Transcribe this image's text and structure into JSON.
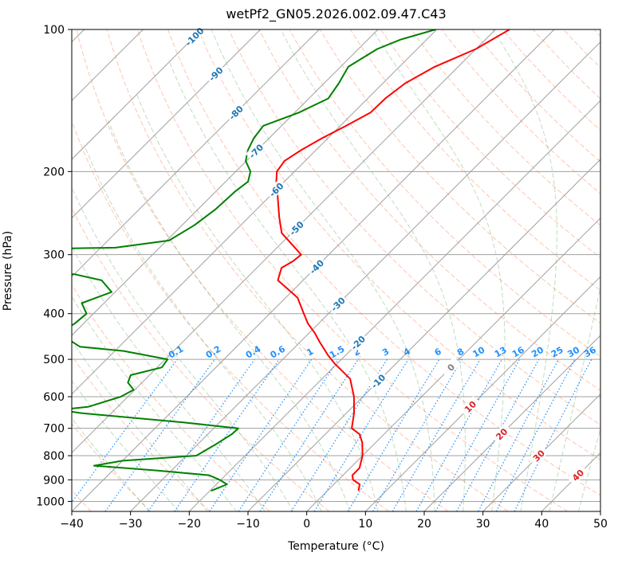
{
  "chart_data": {
    "type": "line",
    "title": "wetPf2_GN05.2026.002.09.47.C43",
    "xlabel": "Temperature (°C)",
    "ylabel": "Pressure (hPa)",
    "xlim": [
      -40,
      50
    ],
    "ylim": [
      1050,
      100
    ],
    "y_scale": "log",
    "skew": true,
    "grid": true,
    "x_ticks": [
      -40,
      -30,
      -20,
      -10,
      0,
      10,
      20,
      30,
      40,
      50
    ],
    "y_ticks": [
      100,
      200,
      300,
      400,
      500,
      600,
      700,
      800,
      900,
      1000
    ],
    "series": [
      {
        "role": "temperature",
        "color": "#ff0000",
        "points": [
          [
            100,
            -47.6
          ],
          [
            110,
            -50.0
          ],
          [
            120,
            -54.0
          ],
          [
            130,
            -56.2
          ],
          [
            140,
            -57.0
          ],
          [
            150,
            -57.1
          ],
          [
            160,
            -59.0
          ],
          [
            170,
            -61.0
          ],
          [
            180,
            -62.5
          ],
          [
            190,
            -63.5
          ],
          [
            200,
            -63.0
          ],
          [
            210,
            -61.4
          ],
          [
            220,
            -59.6
          ],
          [
            250,
            -54.8
          ],
          [
            270,
            -51.7
          ],
          [
            300,
            -44.7
          ],
          [
            310,
            -45.0
          ],
          [
            320,
            -45.8
          ],
          [
            340,
            -44.3
          ],
          [
            370,
            -38.0
          ],
          [
            400,
            -34.2
          ],
          [
            420,
            -31.8
          ],
          [
            440,
            -29.0
          ],
          [
            460,
            -26.6
          ],
          [
            490,
            -23.0
          ],
          [
            510,
            -20.5
          ],
          [
            550,
            -15.2
          ],
          [
            600,
            -11.5
          ],
          [
            650,
            -8.7
          ],
          [
            700,
            -6.5
          ],
          [
            720,
            -4.2
          ],
          [
            750,
            -2.3
          ],
          [
            800,
            0.0
          ],
          [
            850,
            1.6
          ],
          [
            880,
            1.6
          ],
          [
            900,
            2.5
          ],
          [
            920,
            4.4
          ],
          [
            950,
            5.3
          ]
        ]
      },
      {
        "role": "dewpoint",
        "color": "#008000",
        "points": [
          [
            100,
            -60.2
          ],
          [
            105,
            -64.4
          ],
          [
            110,
            -66.8
          ],
          [
            120,
            -68.7
          ],
          [
            130,
            -67.5
          ],
          [
            140,
            -66.7
          ],
          [
            150,
            -69.3
          ],
          [
            160,
            -73.1
          ],
          [
            170,
            -72.6
          ],
          [
            180,
            -71.6
          ],
          [
            190,
            -70.1
          ],
          [
            200,
            -67.5
          ],
          [
            210,
            -66.2
          ],
          [
            220,
            -66.7
          ],
          [
            240,
            -67.0
          ],
          [
            260,
            -67.9
          ],
          [
            280,
            -69.6
          ],
          [
            290,
            -77.5
          ],
          [
            293,
            -99.6
          ],
          [
            300,
            -100.0
          ],
          [
            315,
            -98.4
          ],
          [
            325,
            -94.0
          ],
          [
            330,
            -80.0
          ],
          [
            340,
            -74.3
          ],
          [
            360,
            -70.6
          ],
          [
            380,
            -73.8
          ],
          [
            400,
            -71.2
          ],
          [
            420,
            -71.5
          ],
          [
            440,
            -72.6
          ],
          [
            470,
            -66.7
          ],
          [
            480,
            -58.5
          ],
          [
            500,
            -49.6
          ],
          [
            520,
            -49.2
          ],
          [
            540,
            -53.2
          ],
          [
            560,
            -52.4
          ],
          [
            580,
            -50.2
          ],
          [
            600,
            -51.2
          ],
          [
            630,
            -55.0
          ],
          [
            640,
            -59.4
          ],
          [
            650,
            -55.1
          ],
          [
            680,
            -36.2
          ],
          [
            700,
            -25.8
          ],
          [
            720,
            -25.9
          ],
          [
            760,
            -27.0
          ],
          [
            800,
            -28.3
          ],
          [
            820,
            -40.0
          ],
          [
            840,
            -44.0
          ],
          [
            860,
            -32.5
          ],
          [
            880,
            -22.8
          ],
          [
            900,
            -20.2
          ],
          [
            920,
            -18.2
          ],
          [
            950,
            -19.8
          ]
        ]
      }
    ],
    "isotherm_labels": [
      "-100",
      "-90",
      "-80",
      "-70",
      "-60",
      "-50",
      "-40",
      "-30",
      "-20",
      "-10",
      "0",
      "10",
      "20",
      "30",
      "40"
    ],
    "mixing_ratio_labels": [
      "0.1",
      "0.2",
      "0.4",
      "0.6",
      "1",
      "1.5",
      "2",
      "3",
      "4",
      "6",
      "8",
      "10",
      "13",
      "16",
      "20",
      "25",
      "30",
      "36"
    ],
    "colors": {
      "isotherm": "#a0a0a0",
      "dry_adiabat": "#ff7f50",
      "moist_adiabat": "#2e8b2e",
      "mixing_ratio": "#1e90ff",
      "cold_label": "#1f77b4",
      "warm_label": "#d62728",
      "zero_label": "#808080"
    }
  }
}
